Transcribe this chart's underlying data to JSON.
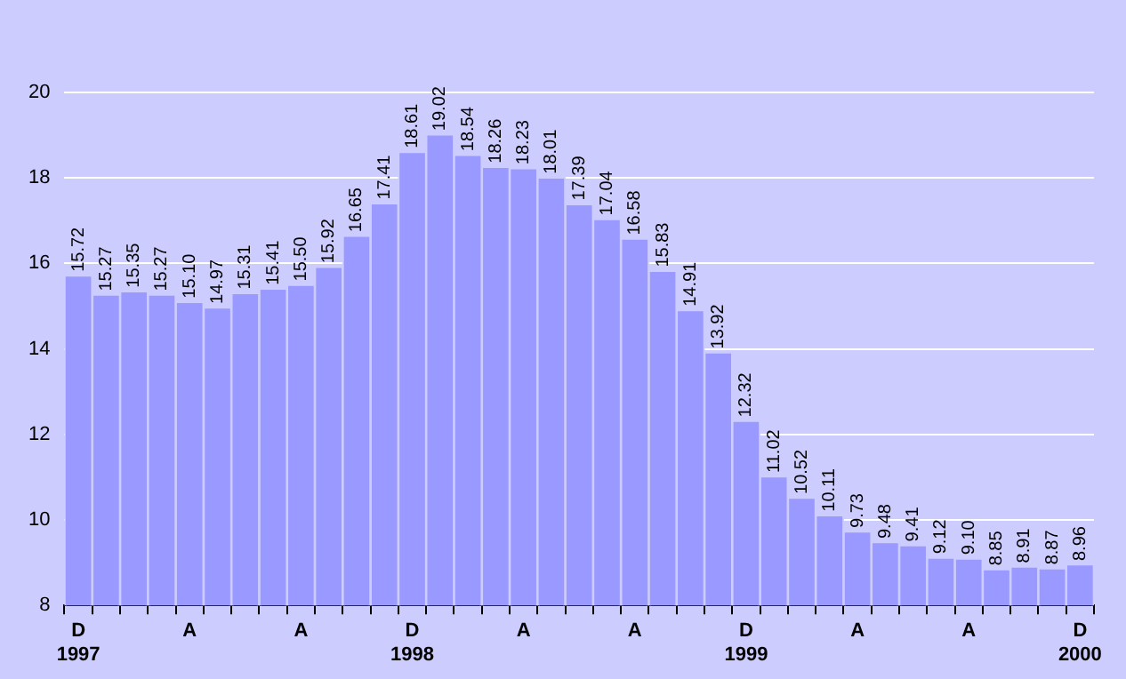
{
  "chart_data": {
    "type": "bar",
    "categories": [
      "D\n1997",
      null,
      null,
      null,
      "A",
      null,
      null,
      null,
      "A",
      null,
      null,
      null,
      "D\n1998",
      null,
      null,
      null,
      "A",
      null,
      null,
      null,
      "A",
      null,
      null,
      null,
      "D\n1999",
      null,
      null,
      null,
      "A",
      null,
      null,
      null,
      "A",
      null,
      null,
      null,
      "D\n2000"
    ],
    "values": [
      15.72,
      15.27,
      15.35,
      15.27,
      15.1,
      14.97,
      15.31,
      15.41,
      15.5,
      15.92,
      16.65,
      17.41,
      18.61,
      19.02,
      18.54,
      18.26,
      18.23,
      18.01,
      17.39,
      17.04,
      16.58,
      15.83,
      14.91,
      13.92,
      12.32,
      11.02,
      10.52,
      10.11,
      9.73,
      9.48,
      9.41,
      9.12,
      9.1,
      8.85,
      8.91,
      8.87,
      8.96
    ],
    "color": "#9999ff",
    "value_labels": [
      "15.72",
      "15.27",
      "15.35",
      "15.27",
      "15.10",
      "14.97",
      "15.31",
      "15.41",
      "15.50",
      "15.92",
      "16.65",
      "17.41",
      "18.61",
      "19.02",
      "18.54",
      "18.26",
      "18.23",
      "18.01",
      "17.39",
      "17.04",
      "16.58",
      "15.83",
      "14.91",
      "13.92",
      "12.32",
      "11.02",
      "10.52",
      "10.11",
      "9.73",
      "9.48",
      "9.41",
      "9.12",
      "9.10",
      "8.85",
      "8.91",
      "8.87",
      "8.96"
    ],
    "ylim": [
      8,
      20
    ],
    "yticks": [
      8,
      10,
      12,
      14,
      16,
      18,
      20
    ],
    "grid": "y",
    "legend": false
  }
}
